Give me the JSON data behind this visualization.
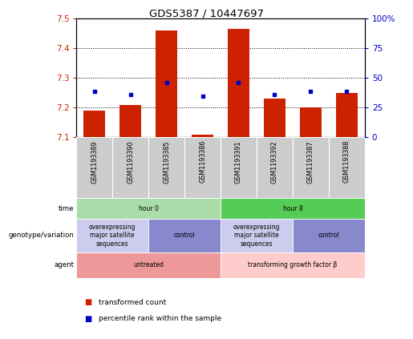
{
  "title": "GDS5387 / 10447697",
  "samples": [
    "GSM1193389",
    "GSM1193390",
    "GSM1193385",
    "GSM1193386",
    "GSM1193391",
    "GSM1193392",
    "GSM1193387",
    "GSM1193388"
  ],
  "bar_bottoms": [
    7.1,
    7.1,
    7.1,
    7.1,
    7.1,
    7.1,
    7.1,
    7.1
  ],
  "bar_tops": [
    7.19,
    7.21,
    7.46,
    7.11,
    7.465,
    7.23,
    7.2,
    7.25
  ],
  "percentile_values": [
    7.255,
    7.245,
    7.285,
    7.238,
    7.285,
    7.245,
    7.255,
    7.255
  ],
  "ylim": [
    7.1,
    7.5
  ],
  "yticks_left": [
    7.1,
    7.2,
    7.3,
    7.4,
    7.5
  ],
  "yticks_right_vals": [
    0,
    25,
    50,
    75,
    100
  ],
  "yticks_right_labels": [
    "0",
    "25",
    "50",
    "75",
    "100%"
  ],
  "left_color": "#cc2200",
  "right_color": "#0000cc",
  "bar_color": "#cc2200",
  "dot_color": "#0000cc",
  "time_row": {
    "label": "time",
    "groups": [
      {
        "text": "hour 0",
        "start": 0,
        "end": 4,
        "color": "#aaddaa"
      },
      {
        "text": "hour 8",
        "start": 4,
        "end": 8,
        "color": "#55cc55"
      }
    ]
  },
  "genotype_row": {
    "label": "genotype/variation",
    "groups": [
      {
        "text": "overexpressing\nmajor satellite\nsequences",
        "start": 0,
        "end": 2,
        "color": "#ccccee"
      },
      {
        "text": "control",
        "start": 2,
        "end": 4,
        "color": "#8888cc"
      },
      {
        "text": "overexpressing\nmajor satellite\nsequences",
        "start": 4,
        "end": 6,
        "color": "#ccccee"
      },
      {
        "text": "control",
        "start": 6,
        "end": 8,
        "color": "#8888cc"
      }
    ]
  },
  "agent_row": {
    "label": "agent",
    "groups": [
      {
        "text": "untreated",
        "start": 0,
        "end": 4,
        "color": "#ee9999"
      },
      {
        "text": "transforming growth factor β",
        "start": 4,
        "end": 8,
        "color": "#ffcccc"
      }
    ]
  },
  "legend_items": [
    {
      "color": "#cc2200",
      "label": "transformed count"
    },
    {
      "color": "#0000cc",
      "label": "percentile rank within the sample"
    }
  ],
  "figsize": [
    5.15,
    4.23
  ],
  "dpi": 100
}
